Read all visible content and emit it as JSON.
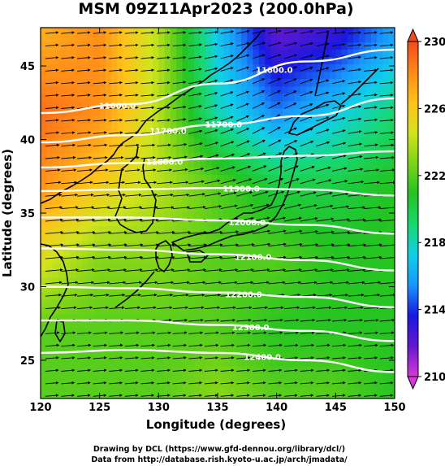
{
  "chart_data": {
    "type": "heatmap",
    "title": "MSM 09Z11Apr2023 (200.0hPa)",
    "xlabel": "Longitude (degrees)",
    "ylabel": "Latitude  (degrees)",
    "xlim": [
      120,
      150
    ],
    "ylim": [
      22.4,
      47.6
    ],
    "x_ticks": [
      "120",
      "125",
      "130",
      "135",
      "140",
      "145",
      "150"
    ],
    "y_ticks": [
      "25",
      "30",
      "35",
      "40",
      "45"
    ],
    "colorbar": {
      "vmin": 210,
      "vmax": 230,
      "ticks": [
        "210",
        "214",
        "218",
        "222",
        "226",
        "230"
      ],
      "extend": "both"
    },
    "temperature_field_K": {
      "lon": [
        120,
        125,
        130,
        135,
        140,
        145,
        150
      ],
      "lat": [
        47,
        42,
        37,
        32,
        27,
        23
      ],
      "values": [
        [
          227,
          228,
          224,
          217,
          212,
          213,
          216
        ],
        [
          229,
          228,
          224,
          218,
          215,
          217,
          219
        ],
        [
          228,
          226,
          224,
          222,
          220,
          220,
          221
        ],
        [
          225,
          223,
          223,
          222,
          222,
          221,
          221
        ],
        [
          222,
          222,
          222,
          222,
          221,
          221,
          221
        ],
        [
          222,
          222,
          222,
          223,
          222,
          222,
          221
        ]
      ]
    },
    "geopotential_contours": [
      {
        "label": "11600.0",
        "lat": [
          41.8,
          42.4,
          43.8,
          45.3,
          46.1
        ]
      },
      {
        "label": "11700.0",
        "lat": [
          39.8,
          40.3,
          41.0,
          41.6,
          42.8
        ]
      },
      {
        "label": "11800.0",
        "lat": [
          38.1,
          38.4,
          38.7,
          38.9,
          39.2
        ]
      },
      {
        "label": "11900.0",
        "lat": [
          36.5,
          36.6,
          36.7,
          36.6,
          36.2
        ]
      },
      {
        "label": "12000.0",
        "lat": [
          34.7,
          34.7,
          34.5,
          34.2,
          33.6
        ]
      },
      {
        "label": "12100.0",
        "lat": [
          32.6,
          32.5,
          32.2,
          31.8,
          31.1
        ]
      },
      {
        "label": "12200.0",
        "lat": [
          30.0,
          29.9,
          29.6,
          29.3,
          28.6
        ]
      },
      {
        "label": "12300.0",
        "lat": [
          27.7,
          27.7,
          27.4,
          27.0,
          26.3
        ]
      },
      {
        "label": "12400.0",
        "lat": [
          25.5,
          25.7,
          25.5,
          25.0,
          24.2
        ]
      }
    ],
    "contour_lon": [
      120,
      127.5,
      135,
      142.5,
      150
    ],
    "contour_label_positions": [
      {
        "label": "11600.0",
        "lon": 126.5
      },
      {
        "label": "11700.0",
        "lon": 130.8
      },
      {
        "label": "11800.0",
        "lon": 130.5
      },
      {
        "label": "11700.0",
        "lon": 135.5
      },
      {
        "label": "11600.0",
        "lon": 139.8
      },
      {
        "label": "11900.0",
        "lon": 137.0
      },
      {
        "label": "12000.0",
        "lon": 137.5
      },
      {
        "label": "12100.0",
        "lon": 138.0
      },
      {
        "label": "12200.0",
        "lon": 137.2
      },
      {
        "label": "12300.0",
        "lon": 137.8
      },
      {
        "label": "12400.0",
        "lon": 138.8
      }
    ],
    "wind": "westerly jet, arrows pointing east with slight northeast turn over Japan"
  },
  "credits": {
    "line1": "Drawing by DCL (https://www.gfd-dennou.org/library/dcl/)",
    "line2": "Data from http://database.rish.kyoto-u.ac.jp/arch/jmadata/"
  },
  "colors": {
    "ramp": [
      "#d838d8",
      "#6418d0",
      "#1818e0",
      "#1896ff",
      "#10d0e8",
      "#18d870",
      "#22c422",
      "#7ad418",
      "#d2e41c",
      "#ffc21a",
      "#ff8a18",
      "#f24a1a"
    ]
  }
}
